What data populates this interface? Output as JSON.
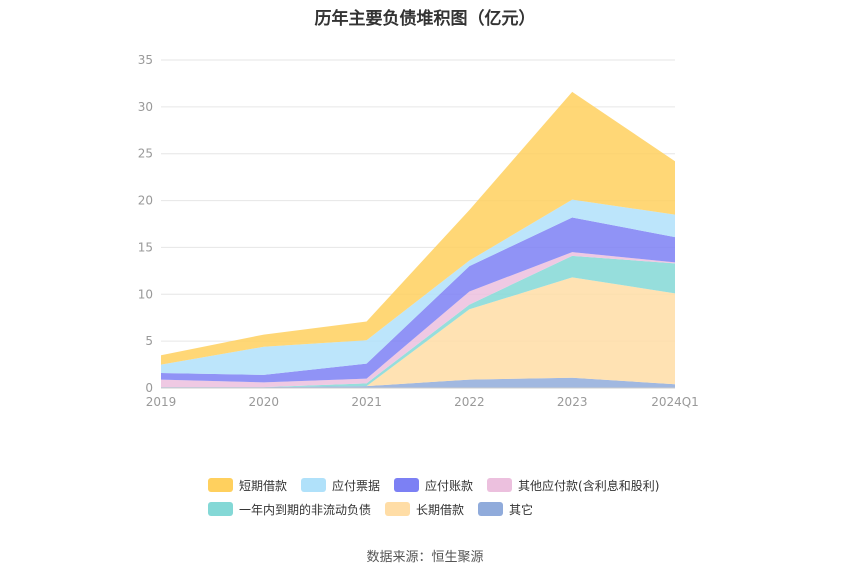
{
  "chart_data": {
    "type": "area",
    "title": "历年主要负债堆积图（亿元）",
    "categories": [
      "2019",
      "2020",
      "2021",
      "2022",
      "2023",
      "2024Q1"
    ],
    "y_ticks": [
      "0",
      "5",
      "10",
      "15",
      "20",
      "25",
      "30",
      "35"
    ],
    "ylim": [
      0,
      35
    ],
    "grid": true,
    "legend_position": "bottom",
    "series": [
      {
        "name": "其它",
        "color": "#90ABDB",
        "values": [
          0.1,
          0.1,
          0.2,
          0.9,
          1.1,
          0.4
        ]
      },
      {
        "name": "长期借款",
        "color": "#FFDDA6",
        "values": [
          0,
          0,
          0,
          7.5,
          10.7,
          9.7
        ]
      },
      {
        "name": "一年内到期的非流动负债",
        "color": "#84D8D6",
        "values": [
          0,
          0,
          0.3,
          0.5,
          2.3,
          3.2
        ]
      },
      {
        "name": "其他应付款(含利息和股利)",
        "color": "#ECC0DE",
        "values": [
          0.8,
          0.5,
          0.5,
          1.4,
          0.4,
          0.1
        ]
      },
      {
        "name": "应付账款",
        "color": "#7C80F4",
        "values": [
          0.7,
          0.8,
          1.6,
          2.7,
          3.7,
          2.7
        ]
      },
      {
        "name": "应付票据",
        "color": "#B0E1FA",
        "values": [
          0.9,
          3.0,
          2.5,
          0.6,
          1.9,
          2.4
        ]
      },
      {
        "name": "短期借款",
        "color": "#FFD05E",
        "values": [
          1.0,
          1.3,
          2.0,
          5.4,
          11.5,
          5.7
        ]
      }
    ],
    "legend_rows": [
      [
        0,
        1,
        2,
        3
      ],
      [
        4,
        5,
        6
      ]
    ],
    "legend_order": [
      "短期借款",
      "应付票据",
      "应付账款",
      "其他应付款(含利息和股利)",
      "一年内到期的非流动负债",
      "长期借款",
      "其它"
    ]
  },
  "source": "数据来源：恒生聚源"
}
